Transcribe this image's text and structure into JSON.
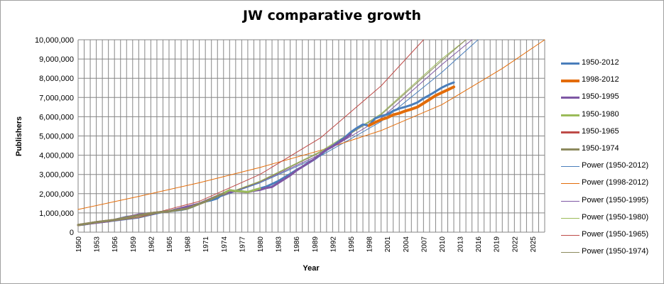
{
  "chart_data": {
    "type": "line",
    "title": "JW comparative growth",
    "xlabel": "Year",
    "ylabel": "Publishers",
    "xlim": [
      1950,
      2027
    ],
    "ylim": [
      0,
      10000000
    ],
    "y_ticks": [
      "0",
      "1,000,000",
      "2,000,000",
      "3,000,000",
      "4,000,000",
      "5,000,000",
      "6,000,000",
      "7,000,000",
      "8,000,000",
      "9,000,000",
      "10,000,000"
    ],
    "x_ticks": [
      "1950",
      "1953",
      "1956",
      "1959",
      "1962",
      "1965",
      "1968",
      "1971",
      "1974",
      "1977",
      "1980",
      "1983",
      "1986",
      "1989",
      "1992",
      "1995",
      "1998",
      "2001",
      "2004",
      "2007",
      "2010",
      "2013",
      "2016",
      "2019",
      "2022",
      "2025"
    ],
    "grid": true,
    "legend_position": "right",
    "series": [
      {
        "name": "1950-2012",
        "color": "#4a7ebb",
        "width": 3,
        "x": [
          1950,
          1951,
          1952,
          1953,
          1954,
          1955,
          1956,
          1957,
          1958,
          1959,
          1960,
          1961,
          1962,
          1963,
          1964,
          1965,
          1966,
          1967,
          1968,
          1969,
          1970,
          1971,
          1972,
          1973,
          1974,
          1975,
          1976,
          1977,
          1978,
          1979,
          1980,
          1981,
          1982,
          1983,
          1984,
          1985,
          1986,
          1987,
          1988,
          1989,
          1990,
          1991,
          1992,
          1993,
          1994,
          1995,
          1996,
          1997,
          1998,
          1999,
          2000,
          2001,
          2002,
          2003,
          2004,
          2005,
          2006,
          2007,
          2008,
          2009,
          2010,
          2011,
          2012
        ],
        "y": [
          374000,
          399000,
          456000,
          519000,
          547000,
          570000,
          640000,
          717000,
          798000,
          815000,
          916000,
          951000,
          990000,
          1000000,
          1040000,
          1090000,
          1118000,
          1160000,
          1222000,
          1336000,
          1483000,
          1590000,
          1660000,
          1758000,
          2021000,
          2180000,
          2138000,
          2117000,
          2086000,
          2186000,
          2272000,
          2361000,
          2501000,
          2653000,
          2843000,
          3024000,
          3230000,
          3396000,
          3592000,
          3787000,
          4017000,
          4278000,
          4472000,
          4709000,
          4914000,
          5199000,
          5413000,
          5599000,
          5544000,
          5912000,
          6035000,
          6117000,
          6304000,
          6429000,
          6513000,
          6613000,
          6741000,
          6957000,
          7124000,
          7313000,
          7509000,
          7660000,
          7782000
        ]
      },
      {
        "name": "1998-2012",
        "color": "#e36c09",
        "width": 4,
        "x": [
          1998,
          1999,
          2000,
          2001,
          2002,
          2003,
          2004,
          2005,
          2006,
          2007,
          2008,
          2009,
          2010,
          2011,
          2012
        ],
        "y": [
          5544000,
          5700000,
          5850000,
          5950000,
          6100000,
          6180000,
          6300000,
          6390000,
          6500000,
          6700000,
          6900000,
          7100000,
          7250000,
          7400000,
          7550000
        ]
      },
      {
        "name": "1950-1995",
        "color": "#7e57a4",
        "width": 3,
        "x": [
          1950,
          1955,
          1960,
          1965,
          1970,
          1974,
          1975,
          1976,
          1977,
          1978,
          1979,
          1980,
          1981,
          1982,
          1983,
          1984,
          1985,
          1986,
          1987,
          1988,
          1989,
          1990,
          1991,
          1992,
          1993,
          1994,
          1995
        ],
        "y": [
          374000,
          570000,
          916000,
          1090000,
          1483000,
          2021000,
          2100000,
          2120000,
          2100000,
          2080000,
          2150000,
          2200000,
          2290000,
          2350000,
          2550000,
          2750000,
          2950000,
          3200000,
          3400000,
          3600000,
          3800000,
          4050000,
          4300000,
          4450000,
          4650000,
          4850000,
          5100000
        ]
      },
      {
        "name": "1950-1980",
        "color": "#9bbb59",
        "width": 3,
        "x": [
          1950,
          1953,
          1956,
          1959,
          1962,
          1965,
          1968,
          1971,
          1974,
          1975,
          1976,
          1977,
          1978,
          1979,
          1980
        ],
        "y": [
          374000,
          519000,
          640000,
          815000,
          990000,
          1090000,
          1222000,
          1590000,
          2021000,
          2180000,
          2138000,
          2117000,
          2086000,
          2186000,
          2272000
        ]
      },
      {
        "name": "1950-1965",
        "color": "#be4b48",
        "width": 3,
        "x": [
          1950,
          1953,
          1956,
          1959,
          1962,
          1965
        ],
        "y": [
          374000,
          519000,
          640000,
          815000,
          990000,
          1090000
        ]
      },
      {
        "name": "1950-1974",
        "color": "#8c8a5e",
        "width": 3,
        "x": [
          1950,
          1953,
          1956,
          1959,
          1962,
          1965,
          1968,
          1971,
          1974
        ],
        "y": [
          374000,
          519000,
          640000,
          815000,
          990000,
          1090000,
          1222000,
          1590000,
          2021000
        ]
      },
      {
        "name": "Power (1950-2012)",
        "color": "#4a7ebb",
        "width": 1,
        "x": [
          1950,
          1960,
          1970,
          1980,
          1990,
          2000,
          2010,
          2016
        ],
        "y": [
          340000,
          730000,
          1450000,
          2560000,
          3960000,
          5750000,
          8300000,
          10000000
        ]
      },
      {
        "name": "Power (1998-2012)",
        "color": "#e36c09",
        "width": 1,
        "x": [
          1950,
          1960,
          1970,
          1980,
          1990,
          2000,
          2010,
          2020,
          2027
        ],
        "y": [
          1180000,
          1860000,
          2570000,
          3360000,
          4250000,
          5280000,
          6620000,
          8510000,
          10000000
        ]
      },
      {
        "name": "Power (1950-1995)",
        "color": "#7e57a4",
        "width": 1,
        "x": [
          1950,
          1960,
          1970,
          1980,
          1990,
          2000,
          2010,
          2015
        ],
        "y": [
          345000,
          740000,
          1460000,
          2600000,
          4040000,
          5920000,
          8700000,
          10000000
        ]
      },
      {
        "name": "Power (1950-1980)",
        "color": "#9bbb59",
        "width": 1,
        "x": [
          1950,
          1960,
          1970,
          1980,
          1990,
          2000,
          2010,
          2014
        ],
        "y": [
          355000,
          770000,
          1490000,
          2650000,
          4200000,
          6150000,
          9000000,
          10000000
        ]
      },
      {
        "name": "Power (1950-1965)",
        "color": "#be4b48",
        "width": 1,
        "x": [
          1950,
          1960,
          1970,
          1980,
          1990,
          2000,
          2007
        ],
        "y": [
          330000,
          780000,
          1600000,
          3000000,
          4900000,
          7600000,
          10000000
        ]
      },
      {
        "name": "Power (1950-1974)",
        "color": "#8c8a5e",
        "width": 1,
        "x": [
          1950,
          1960,
          1970,
          1980,
          1990,
          2000,
          2010,
          2014
        ],
        "y": [
          350000,
          760000,
          1480000,
          2620000,
          4150000,
          6100000,
          8900000,
          10000000
        ]
      }
    ]
  }
}
